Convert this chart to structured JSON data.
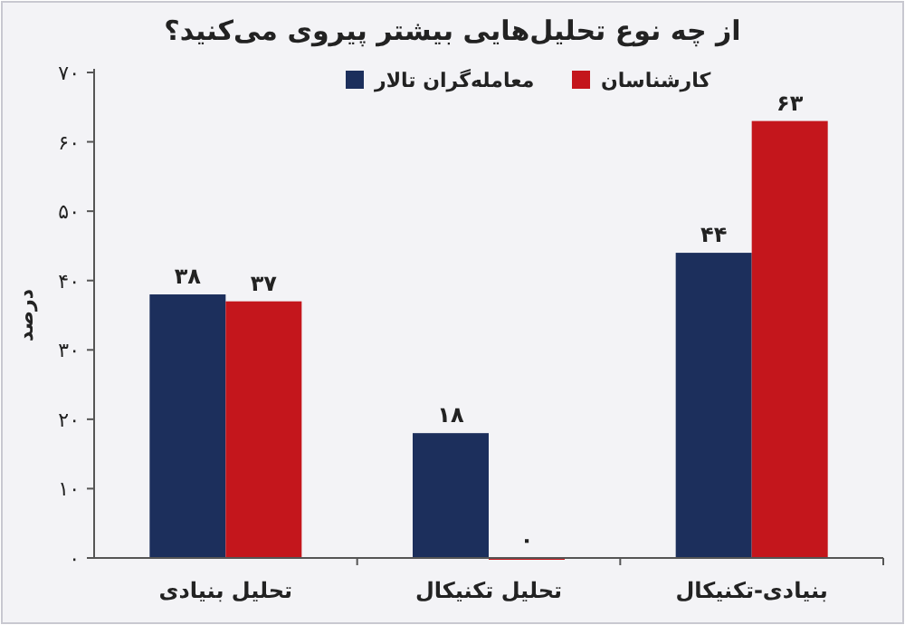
{
  "chart_data": {
    "type": "bar",
    "title": "از چه نوع تحلیل‌هایی بیشتر پیروی می‌کنید؟",
    "ylabel": "درصد",
    "categories": [
      "تحلیل بنیادی",
      "تحلیل تکنیکال",
      "بنیادی-تکنیکال"
    ],
    "series": [
      {
        "name": "معامله‌گران تالار",
        "color": "#1c2f5c",
        "values": [
          38,
          18,
          44
        ],
        "value_labels": [
          "۳۸",
          "۱۸",
          "۴۴"
        ]
      },
      {
        "name": "کارشناسان",
        "color": "#c4161c",
        "values": [
          37,
          0,
          63
        ],
        "value_labels": [
          "۳۷",
          "۰",
          "۶۳"
        ]
      }
    ],
    "ylim": [
      0,
      70
    ],
    "yticks": [
      {
        "value": 0,
        "label": "۰"
      },
      {
        "value": 10,
        "label": "۱۰"
      },
      {
        "value": 20,
        "label": "۲۰"
      },
      {
        "value": 30,
        "label": "۳۰"
      },
      {
        "value": 40,
        "label": "۴۰"
      },
      {
        "value": 50,
        "label": "۵۰"
      },
      {
        "value": 60,
        "label": "۶۰"
      },
      {
        "value": 70,
        "label": "۷۰"
      }
    ],
    "grid": false,
    "legend": "top"
  }
}
